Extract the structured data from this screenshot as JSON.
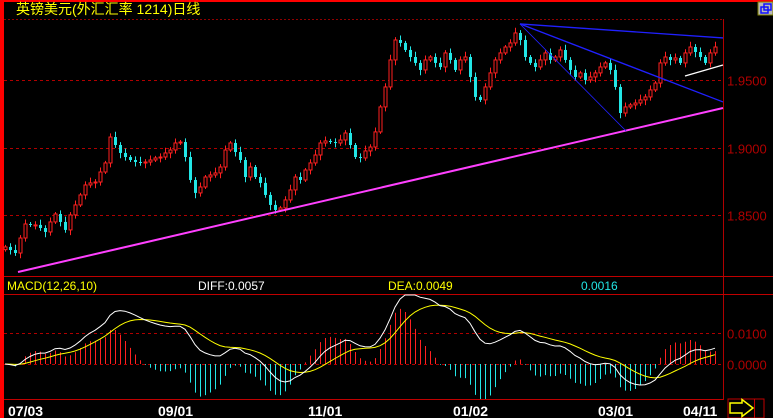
{
  "header": {
    "title": "英镑美元(外汇汇率 1214)日线",
    "title_color": "#ffff00",
    "window_icon": "restore-window-icon"
  },
  "macd_header": {
    "name": "MACD(12,26,10)",
    "diff": "DIFF:0.0057",
    "dea": "DEA:0.0049",
    "macd": "0.0016"
  },
  "colors": {
    "up": "#ff2020",
    "down": "#22e6e6",
    "grid": "#b00000",
    "diff": "#ffffff",
    "dea": "#ffff00",
    "support": "#ff40ff",
    "resistance": "#2020ff",
    "wedge": "#ffffff"
  },
  "nav": {
    "next_icon": "arrow-right-icon"
  },
  "chart_data": [
    {
      "type": "candlestick",
      "title": "英镑美元(外汇汇率 1214)日线",
      "ylim": [
        1.8059,
        1.9948
      ],
      "yticks": [
        {
          "value": 1.95,
          "label": "1.9500"
        },
        {
          "value": 1.9,
          "label": "1.9000"
        },
        {
          "value": 1.85,
          "label": "1.8500"
        }
      ],
      "grid": true,
      "xticks": [
        {
          "index": 4,
          "label": "07/03"
        },
        {
          "index": 34,
          "label": "09/01"
        },
        {
          "index": 64,
          "label": "11/01"
        },
        {
          "index": 93,
          "label": "01/02"
        },
        {
          "index": 122,
          "label": "03/01"
        },
        {
          "index": 139,
          "label": "04/11"
        }
      ],
      "close": [
        1.8267,
        1.8244,
        1.8222,
        1.8333,
        1.8437,
        1.843,
        1.843,
        1.8407,
        1.8378,
        1.8452,
        1.8511,
        1.8452,
        1.8393,
        1.8504,
        1.8578,
        1.8652,
        1.8726,
        1.8741,
        1.8748,
        1.8822,
        1.8889,
        1.9081,
        1.9022,
        1.8963,
        1.8933,
        1.8911,
        1.8896,
        1.8889,
        1.8896,
        1.8911,
        1.8926,
        1.8933,
        1.8963,
        1.8985,
        1.9037,
        1.9044,
        1.8933,
        1.8763,
        1.8667,
        1.8711,
        1.8785,
        1.88,
        1.8815,
        1.8859,
        1.8985,
        1.9037,
        1.897,
        1.8911,
        1.8785,
        1.8859,
        1.8785,
        1.8741,
        1.8652,
        1.8578,
        1.8541,
        1.8556,
        1.8615,
        1.8689,
        1.8785,
        1.8763,
        1.8837,
        1.8889,
        1.8948,
        1.9037,
        1.9052,
        1.9044,
        1.9037,
        1.9059,
        1.9111,
        1.9022,
        1.8933,
        1.8926,
        1.8978,
        1.9007,
        1.9119,
        1.9304,
        1.9452,
        1.9652,
        1.98,
        1.9778,
        1.9726,
        1.9674,
        1.963,
        1.9578,
        1.9652,
        1.9674,
        1.963,
        1.96,
        1.9704,
        1.9652,
        1.9578,
        1.9652,
        1.9674,
        1.9526,
        1.9378,
        1.9356,
        1.9452,
        1.9556,
        1.9652,
        1.9704,
        1.9748,
        1.9778,
        1.9852,
        1.98,
        1.9674,
        1.963,
        1.96,
        1.9652,
        1.9704,
        1.9652,
        1.9674,
        1.9726,
        1.9652,
        1.9578,
        1.9526,
        1.9556,
        1.9504,
        1.9526,
        1.9556,
        1.96,
        1.963,
        1.9578,
        1.9452,
        1.9259,
        1.9304,
        1.9319,
        1.9333,
        1.9356,
        1.9378,
        1.943,
        1.9481,
        1.963,
        1.9674,
        1.9652,
        1.9667,
        1.963,
        1.9704,
        1.9748,
        1.9711,
        1.9674,
        1.963,
        1.9704,
        1.9748
      ],
      "trendlines": [
        {
          "name": "support",
          "from": [
            2.6,
            1.8081
          ],
          "to": [
            143.6,
            1.9296
          ],
          "color": "#ff40ff"
        },
        {
          "name": "resistance-upper",
          "from": [
            103,
            1.9919
          ],
          "to": [
            143.6,
            1.9815
          ],
          "color": "#2020ff"
        },
        {
          "name": "resistance-lower",
          "from": [
            103,
            1.9919
          ],
          "to": [
            143.6,
            1.9341
          ],
          "color": "#2020ff"
        },
        {
          "name": "fan-line",
          "from": [
            103,
            1.9919
          ],
          "to": [
            124.2,
            1.9126
          ],
          "color": "#2020ff"
        },
        {
          "name": "wedge-line",
          "from": [
            136,
            1.9533
          ],
          "to": [
            143.6,
            1.9615
          ],
          "color": "#ffffff"
        }
      ]
    },
    {
      "type": "macd",
      "params": [
        12,
        26,
        10
      ],
      "ylim": [
        -0.0113,
        0.0223
      ],
      "yticks": [
        {
          "value": 0.01,
          "label": "0.0100"
        },
        {
          "value": 0.0,
          "label": "0.0000"
        }
      ],
      "last": {
        "diff": 0.0057,
        "dea": 0.0049,
        "macd": 0.0016
      }
    }
  ]
}
